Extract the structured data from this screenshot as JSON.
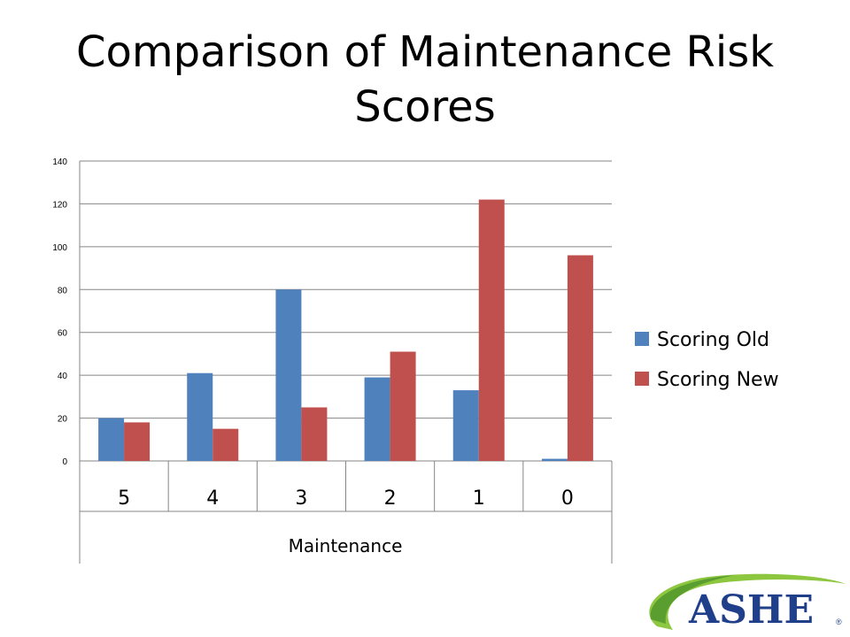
{
  "chart_data": {
    "type": "bar",
    "title": "Comparison of Maintenance Risk Scores",
    "xlabel": "Maintenance",
    "ylabel": "",
    "categories": [
      "5",
      "4",
      "3",
      "2",
      "1",
      "0"
    ],
    "series": [
      {
        "name": "Scoring Old",
        "values": [
          20,
          41,
          80,
          39,
          33,
          1
        ],
        "color": "#4f81bd"
      },
      {
        "name": "Scoring New",
        "values": [
          18,
          15,
          25,
          51,
          122,
          96
        ],
        "color": "#c0504d"
      }
    ],
    "ylim": [
      0,
      140
    ],
    "yticks": [
      0,
      20,
      40,
      60,
      80,
      100,
      120,
      140
    ],
    "grid": true,
    "legend": "right"
  },
  "logo": {
    "text": "ASHE",
    "icon": "ashe-logo"
  }
}
